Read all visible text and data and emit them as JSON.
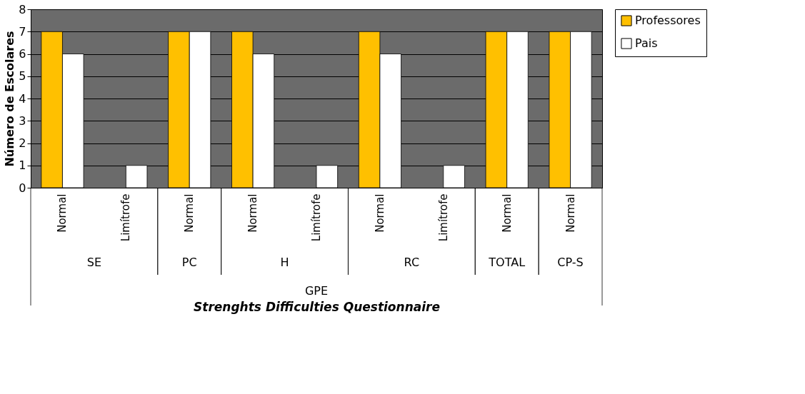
{
  "chart_data": {
    "type": "bar",
    "categories": [
      "Normal",
      "Limítrofe",
      "Normal",
      "Normal",
      "Limítrofe",
      "Normal",
      "Limítrofe",
      "Normal",
      "Normal"
    ],
    "series": [
      {
        "name": "Professores",
        "color": "#ffc000",
        "values": [
          7,
          null,
          7,
          7,
          null,
          7,
          null,
          7,
          7
        ]
      },
      {
        "name": "Pais",
        "color": "#ffffff",
        "values": [
          6,
          1,
          7,
          6,
          1,
          6,
          1,
          7,
          7
        ]
      }
    ],
    "annotations": [
      "SE",
      "PC",
      "H",
      "RC",
      "TOTAL",
      "CP-S",
      "GPE"
    ],
    "xlabel": "Strenghts Difficulties Questionnaire",
    "ylabel": "Número de Escolares",
    "ylim": [
      0,
      8
    ],
    "yticks": [
      0,
      1,
      2,
      3,
      4,
      5,
      6,
      7,
      8
    ],
    "grid": "y",
    "legend": "right"
  }
}
